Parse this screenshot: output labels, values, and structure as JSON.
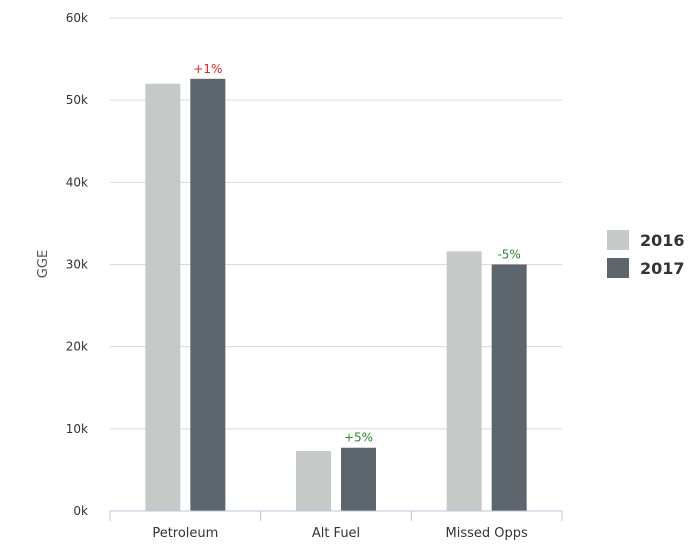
{
  "chart_data": {
    "type": "bar",
    "categories": [
      "Petroleum",
      "Alt Fuel",
      "Missed Opps"
    ],
    "series": [
      {
        "name": "2016",
        "values": [
          52000,
          7300,
          31600
        ],
        "color": "#c5cac9"
      },
      {
        "name": "2017",
        "values": [
          52600,
          7700,
          30000
        ],
        "color": "#5d666c"
      }
    ],
    "change_labels": [
      {
        "text": "+1%",
        "color": "#e8202a"
      },
      {
        "text": "+5%",
        "color": "#2e8b2e"
      },
      {
        "text": "-5%",
        "color": "#2e8b2e"
      }
    ],
    "ylabel": "GGE",
    "xlabel": "",
    "ylim": [
      0,
      60000
    ],
    "y_ticks": [
      0,
      10000,
      20000,
      30000,
      40000,
      50000,
      60000
    ],
    "y_tick_labels": [
      "0k",
      "10k",
      "20k",
      "30k",
      "40k",
      "50k",
      "60k"
    ],
    "grid": true,
    "legend_position": "right"
  }
}
